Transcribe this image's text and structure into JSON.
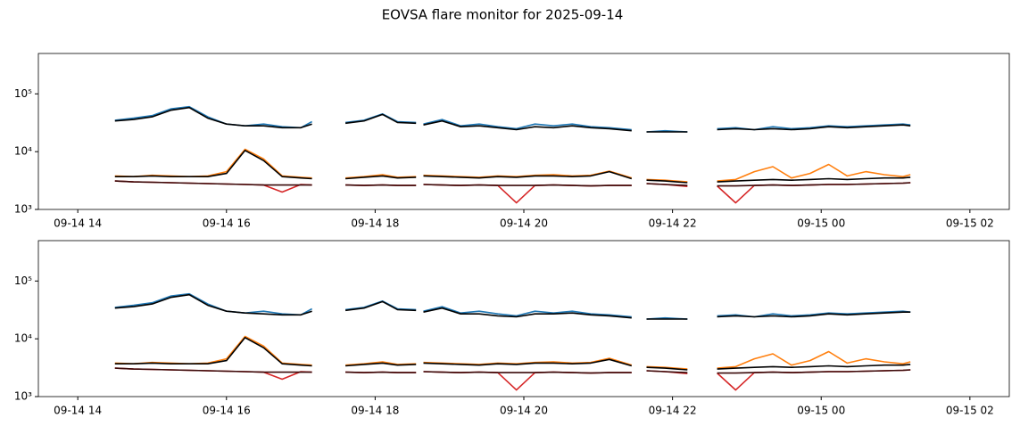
{
  "title": "EOVSA flare monitor for 2025-09-14",
  "chart_data": [
    {
      "type": "line",
      "yscale": "log",
      "xlim": [
        13.47,
        26.53
      ],
      "ylim": [
        1000,
        500000
      ],
      "xticks": [
        {
          "value": 14,
          "label": "09-14 14"
        },
        {
          "value": 16,
          "label": "09-14 16"
        },
        {
          "value": 18,
          "label": "09-14 18"
        },
        {
          "value": 20,
          "label": "09-14 20"
        },
        {
          "value": 22,
          "label": "09-14 22"
        },
        {
          "value": 24,
          "label": "09-15 00"
        },
        {
          "value": 26,
          "label": "09-15 02"
        }
      ],
      "yticks": [
        {
          "value": 1000,
          "label": "10³"
        },
        {
          "value": 10000,
          "label": "10⁴"
        },
        {
          "value": 100000,
          "label": "10⁵"
        }
      ],
      "x": [
        14.5,
        14.75,
        15.0,
        15.25,
        15.5,
        15.75,
        16.0,
        16.25,
        16.5,
        16.75,
        17.0,
        17.15,
        17.4,
        17.6,
        17.85,
        18.1,
        18.3,
        18.55,
        18.6,
        18.65,
        18.9,
        19.15,
        19.4,
        19.65,
        19.9,
        20.15,
        20.4,
        20.65,
        20.9,
        21.15,
        21.45,
        21.55,
        21.65,
        21.9,
        22.2,
        22.4,
        22.6,
        22.85,
        23.1,
        23.35,
        23.6,
        23.85,
        24.1,
        24.35,
        24.6,
        24.85,
        25.1,
        25.2
      ],
      "series": [
        {
          "color": "#1f77b4",
          "values": [
            35000,
            38000,
            42000,
            55000,
            60000,
            40000,
            30000,
            28000,
            30000,
            27000,
            26000,
            33000,
            null,
            32000,
            35000,
            45000,
            33000,
            32000,
            null,
            30000,
            36000,
            28000,
            30000,
            27000,
            25000,
            30000,
            28000,
            30000,
            27000,
            26000,
            24000,
            null,
            22000,
            23000,
            22000,
            null,
            25000,
            26000,
            24000,
            27000,
            25000,
            26000,
            28000,
            27000,
            28000,
            29000,
            30000,
            29000
          ]
        },
        {
          "color": "#000000",
          "values": [
            34000,
            36000,
            40000,
            52000,
            58000,
            38000,
            30000,
            28000,
            28000,
            26000,
            26000,
            30000,
            null,
            31000,
            34000,
            44000,
            32000,
            31000,
            null,
            29000,
            34000,
            27000,
            28000,
            26000,
            24000,
            27000,
            26000,
            28000,
            26000,
            25000,
            23000,
            null,
            22000,
            22000,
            22000,
            null,
            24000,
            25000,
            24000,
            25000,
            24000,
            25000,
            27000,
            26000,
            27000,
            28000,
            29000,
            28000
          ]
        },
        {
          "color": "#ff7f0e",
          "values": [
            3800,
            3700,
            3900,
            3800,
            3700,
            3800,
            4500,
            11000,
            7500,
            3800,
            3600,
            3500,
            null,
            3500,
            3700,
            4000,
            3600,
            3700,
            null,
            3900,
            3800,
            3700,
            3600,
            3800,
            3700,
            3900,
            4000,
            3800,
            3900,
            4600,
            3500,
            null,
            3300,
            3200,
            3000,
            null,
            3100,
            3300,
            4500,
            5500,
            3500,
            4200,
            6000,
            3800,
            4500,
            4000,
            3700,
            4000
          ]
        },
        {
          "color": "#d62728",
          "values": [
            3100,
            3000,
            2950,
            2900,
            2850,
            2800,
            2750,
            2700,
            2650,
            2000,
            2700,
            2650,
            null,
            2650,
            2600,
            2650,
            2600,
            2600,
            null,
            2700,
            2650,
            2600,
            2650,
            2600,
            1300,
            2600,
            2650,
            2600,
            2550,
            2600,
            2600,
            null,
            2800,
            2700,
            2500,
            null,
            2550,
            1300,
            2600,
            2650,
            2600,
            2650,
            2700,
            2700,
            2750,
            2800,
            2850,
            2900
          ]
        },
        {
          "color": "#000000",
          "values": [
            3700,
            3700,
            3800,
            3700,
            3700,
            3700,
            4200,
            10500,
            7000,
            3700,
            3500,
            3400,
            null,
            3400,
            3600,
            3800,
            3500,
            3600,
            null,
            3800,
            3700,
            3600,
            3500,
            3700,
            3600,
            3800,
            3800,
            3700,
            3800,
            4500,
            3400,
            null,
            3200,
            3100,
            2900,
            null,
            3000,
            3100,
            3200,
            3300,
            3200,
            3300,
            3400,
            3300,
            3400,
            3500,
            3500,
            3600
          ]
        },
        {
          "color": "#3a0a0a",
          "values": [
            3100,
            3000,
            2950,
            2900,
            2850,
            2800,
            2750,
            2700,
            2650,
            2650,
            2650,
            2650,
            null,
            2650,
            2600,
            2650,
            2600,
            2600,
            null,
            2700,
            2650,
            2600,
            2650,
            2600,
            2600,
            2600,
            2650,
            2600,
            2550,
            2600,
            2600,
            null,
            2800,
            2700,
            2600,
            null,
            2550,
            2550,
            2600,
            2650,
            2600,
            2650,
            2700,
            2700,
            2750,
            2800,
            2850,
            2900
          ]
        }
      ]
    },
    {
      "type": "line",
      "yscale": "log",
      "xlim": [
        13.47,
        26.53
      ],
      "ylim": [
        1000,
        500000
      ],
      "xticks": [
        {
          "value": 14,
          "label": "09-14 14"
        },
        {
          "value": 16,
          "label": "09-14 16"
        },
        {
          "value": 18,
          "label": "09-14 18"
        },
        {
          "value": 20,
          "label": "09-14 20"
        },
        {
          "value": 22,
          "label": "09-14 22"
        },
        {
          "value": 24,
          "label": "09-15 00"
        },
        {
          "value": 26,
          "label": "09-15 02"
        }
      ],
      "yticks": [
        {
          "value": 1000,
          "label": "10³"
        },
        {
          "value": 10000,
          "label": "10⁴"
        },
        {
          "value": 100000,
          "label": "10⁵"
        }
      ],
      "x": [
        14.5,
        14.75,
        15.0,
        15.25,
        15.5,
        15.75,
        16.0,
        16.25,
        16.5,
        16.75,
        17.0,
        17.15,
        17.4,
        17.6,
        17.85,
        18.1,
        18.3,
        18.55,
        18.6,
        18.65,
        18.9,
        19.15,
        19.4,
        19.65,
        19.9,
        20.15,
        20.4,
        20.65,
        20.9,
        21.15,
        21.45,
        21.55,
        21.65,
        21.9,
        22.2,
        22.4,
        22.6,
        22.85,
        23.1,
        23.35,
        23.6,
        23.85,
        24.1,
        24.35,
        24.6,
        24.85,
        25.1,
        25.2
      ],
      "series": [
        {
          "color": "#1f77b4",
          "values": [
            35000,
            38000,
            42000,
            55000,
            60000,
            40000,
            30000,
            28000,
            30000,
            27000,
            26000,
            33000,
            null,
            32000,
            35000,
            45000,
            33000,
            32000,
            null,
            30000,
            36000,
            28000,
            30000,
            27000,
            25000,
            30000,
            28000,
            30000,
            27000,
            26000,
            24000,
            null,
            22000,
            23000,
            22000,
            null,
            25000,
            26000,
            24000,
            27000,
            25000,
            26000,
            28000,
            27000,
            28000,
            29000,
            30000,
            29000
          ]
        },
        {
          "color": "#000000",
          "values": [
            34000,
            36000,
            40000,
            52000,
            58000,
            38000,
            30000,
            28000,
            27000,
            26000,
            26000,
            30000,
            null,
            31000,
            34000,
            44000,
            32000,
            31000,
            null,
            29000,
            34000,
            27000,
            27000,
            25000,
            24000,
            27000,
            27000,
            28000,
            26000,
            25000,
            23000,
            null,
            22000,
            22000,
            22000,
            null,
            24000,
            25000,
            24000,
            25000,
            24000,
            25000,
            27000,
            26000,
            27000,
            28000,
            29000,
            29000
          ]
        },
        {
          "color": "#ff7f0e",
          "values": [
            3800,
            3700,
            3900,
            3800,
            3700,
            3800,
            4500,
            11000,
            7500,
            3800,
            3600,
            3500,
            null,
            3500,
            3700,
            4000,
            3600,
            3700,
            null,
            3900,
            3800,
            3700,
            3600,
            3800,
            3700,
            3900,
            4000,
            3800,
            3900,
            4600,
            3500,
            null,
            3300,
            3200,
            3000,
            null,
            3100,
            3300,
            4500,
            5500,
            3500,
            4200,
            6000,
            3800,
            4500,
            4000,
            3700,
            4000
          ]
        },
        {
          "color": "#d62728",
          "values": [
            3100,
            3000,
            2950,
            2900,
            2850,
            2800,
            2750,
            2700,
            2650,
            2000,
            2700,
            2650,
            null,
            2650,
            2600,
            2650,
            2600,
            2600,
            null,
            2700,
            2650,
            2600,
            2650,
            2600,
            1300,
            2600,
            2650,
            2600,
            2550,
            2600,
            2600,
            null,
            2800,
            2700,
            2500,
            null,
            2550,
            1300,
            2600,
            2650,
            2600,
            2650,
            2700,
            2700,
            2750,
            2800,
            2850,
            2900
          ]
        },
        {
          "color": "#000000",
          "values": [
            3700,
            3700,
            3800,
            3700,
            3700,
            3700,
            4200,
            10500,
            7000,
            3700,
            3500,
            3400,
            null,
            3400,
            3600,
            3800,
            3500,
            3600,
            null,
            3800,
            3700,
            3600,
            3500,
            3700,
            3600,
            3800,
            3800,
            3700,
            3800,
            4400,
            3400,
            null,
            3200,
            3100,
            2900,
            null,
            3000,
            3100,
            3200,
            3300,
            3200,
            3300,
            3400,
            3300,
            3400,
            3500,
            3500,
            3600
          ]
        },
        {
          "color": "#3a0a0a",
          "values": [
            3100,
            3000,
            2950,
            2900,
            2850,
            2800,
            2750,
            2700,
            2650,
            2650,
            2650,
            2650,
            null,
            2650,
            2600,
            2650,
            2600,
            2600,
            null,
            2700,
            2650,
            2600,
            2650,
            2600,
            2600,
            2600,
            2650,
            2600,
            2550,
            2600,
            2600,
            null,
            2800,
            2700,
            2600,
            null,
            2550,
            2550,
            2600,
            2650,
            2600,
            2650,
            2700,
            2700,
            2750,
            2800,
            2850,
            2900
          ]
        }
      ]
    }
  ]
}
